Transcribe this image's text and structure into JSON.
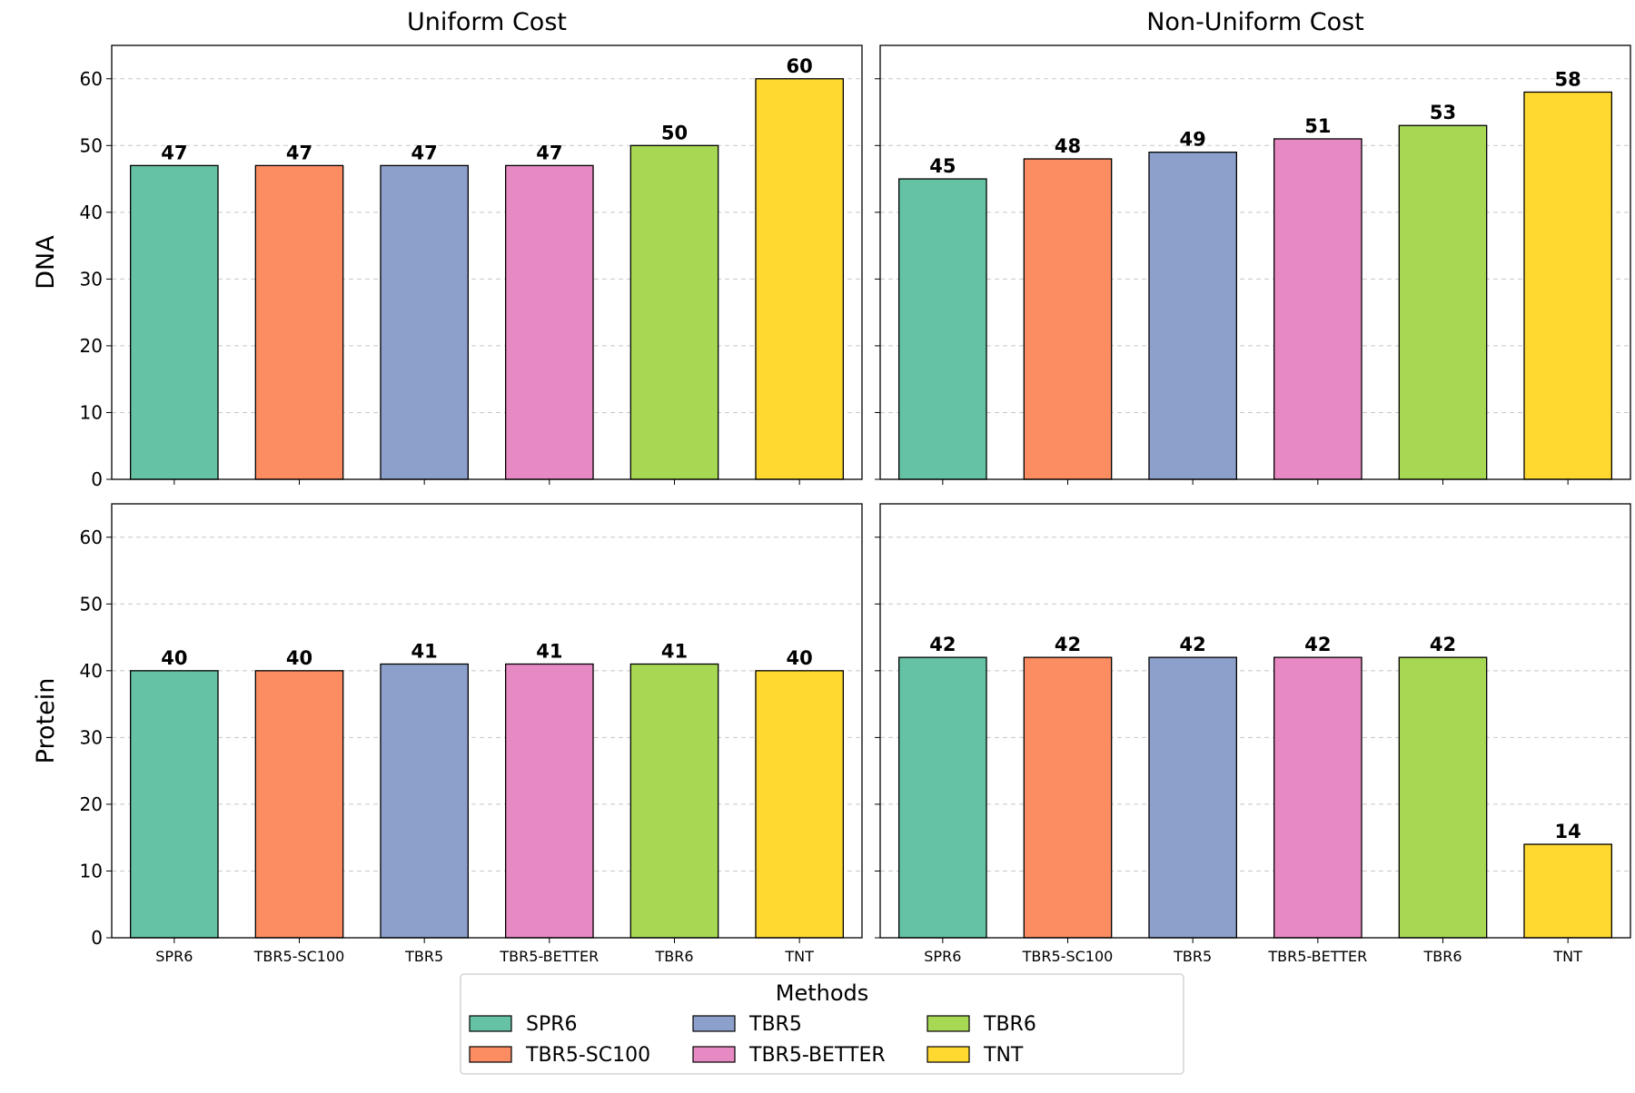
{
  "chart_data": {
    "type": "bar",
    "categories": [
      "SPR6",
      "TBR5-SC100",
      "TBR5",
      "TBR5-BETTER",
      "TBR6",
      "TNT"
    ],
    "colors": [
      "#66c2a5",
      "#fc8d62",
      "#8da0cb",
      "#e78ac3",
      "#a6d854",
      "#ffd92f"
    ],
    "ylim": [
      0,
      65
    ],
    "yticks": [
      0,
      10,
      20,
      30,
      40,
      50,
      60
    ],
    "grid": "y-dashed",
    "column_titles": [
      "Uniform Cost",
      "Non-Uniform Cost"
    ],
    "row_labels": [
      "DNA",
      "Protein"
    ],
    "panels": [
      {
        "row": "DNA",
        "col": "Uniform Cost",
        "values": [
          47,
          47,
          47,
          47,
          50,
          60
        ]
      },
      {
        "row": "DNA",
        "col": "Non-Uniform Cost",
        "values": [
          45,
          48,
          49,
          51,
          53,
          58
        ]
      },
      {
        "row": "Protein",
        "col": "Uniform Cost",
        "values": [
          40,
          40,
          41,
          41,
          41,
          40
        ]
      },
      {
        "row": "Protein",
        "col": "Non-Uniform Cost",
        "values": [
          42,
          42,
          42,
          42,
          42,
          14
        ]
      }
    ],
    "legend": {
      "title": "Methods",
      "placement": "bottom-center",
      "entries": [
        "SPR6",
        "TBR5-SC100",
        "TBR5",
        "TBR5-BETTER",
        "TBR6",
        "TNT"
      ]
    }
  }
}
